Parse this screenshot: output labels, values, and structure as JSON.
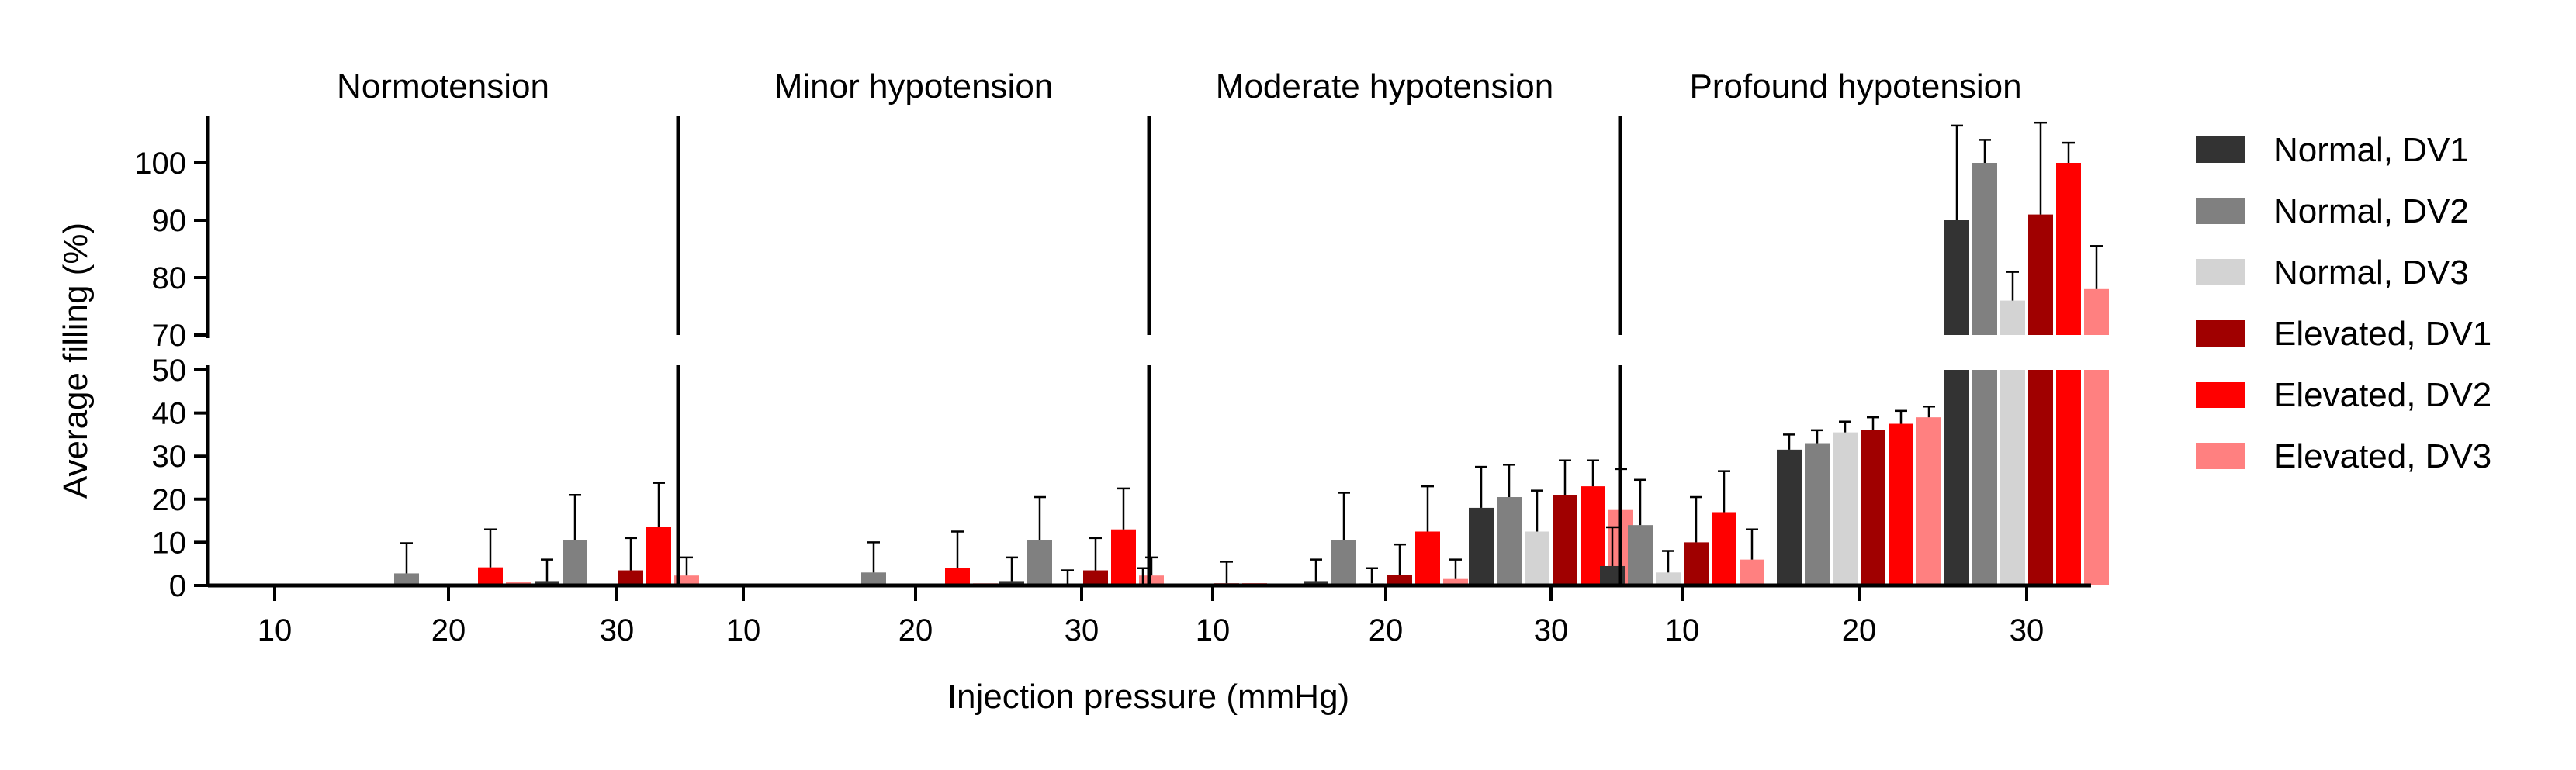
{
  "chart_data": {
    "type": "bar",
    "ylabel": "Average filling (%)",
    "xlabel": "Injection pressure (mmHg)",
    "y_axis_break": {
      "lower_range": [
        0,
        50
      ],
      "upper_range": [
        70,
        107
      ]
    },
    "lower_ticks": [
      0,
      10,
      20,
      30,
      40,
      50
    ],
    "upper_ticks": [
      70,
      80,
      90,
      100
    ],
    "categories": [
      "10",
      "20",
      "30"
    ],
    "panels": [
      {
        "title": "Normotension",
        "series": [
          {
            "name": "Normal, DV1",
            "values": [
              0,
              0,
              1
            ],
            "errors": [
              0,
              0,
              5
            ]
          },
          {
            "name": "Normal, DV2",
            "values": [
              0,
              2.8,
              10.5
            ],
            "errors": [
              0,
              7,
              10.5
            ]
          },
          {
            "name": "Normal, DV3",
            "values": [
              0,
              0,
              0
            ],
            "errors": [
              0,
              0,
              0
            ]
          },
          {
            "name": "Elevated, DV1",
            "values": [
              0,
              0,
              3.5
            ],
            "errors": [
              0,
              0,
              7.5
            ]
          },
          {
            "name": "Elevated, DV2",
            "values": [
              0,
              4.2,
              13.5
            ],
            "errors": [
              0,
              8.8,
              10.3
            ]
          },
          {
            "name": "Elevated, DV3",
            "values": [
              0,
              0.8,
              2.3
            ],
            "errors": [
              0,
              0,
              4.2
            ]
          }
        ]
      },
      {
        "title": "Minor hypotension",
        "series": [
          {
            "name": "Normal, DV1",
            "values": [
              0,
              0,
              1
            ],
            "errors": [
              0,
              0,
              5.5
            ]
          },
          {
            "name": "Normal, DV2",
            "values": [
              0,
              3,
              10.5
            ],
            "errors": [
              0,
              7,
              10
            ]
          },
          {
            "name": "Normal, DV3",
            "values": [
              0,
              0,
              0
            ],
            "errors": [
              0,
              0,
              3.5
            ]
          },
          {
            "name": "Elevated, DV1",
            "values": [
              0,
              0,
              3.5
            ],
            "errors": [
              0,
              0,
              7.5
            ]
          },
          {
            "name": "Elevated, DV2",
            "values": [
              0,
              4,
              13
            ],
            "errors": [
              0,
              8.5,
              9.5
            ]
          },
          {
            "name": "Elevated, DV3",
            "values": [
              0,
              0.5,
              2.3
            ],
            "errors": [
              0,
              0,
              4.2
            ]
          }
        ]
      },
      {
        "title": "Moderate hypotension",
        "series": [
          {
            "name": "Normal, DV1",
            "values": [
              0,
              1,
              18
            ],
            "errors": [
              4,
              5,
              9.5
            ]
          },
          {
            "name": "Normal, DV2",
            "values": [
              0,
              10.5,
              20.5
            ],
            "errors": [
              0,
              11,
              7.5
            ]
          },
          {
            "name": "Normal, DV3",
            "values": [
              0,
              0.5,
              12.5
            ],
            "errors": [
              0,
              3.5,
              9.5
            ]
          },
          {
            "name": "Elevated, DV1",
            "values": [
              0.5,
              2.5,
              21
            ],
            "errors": [
              5,
              7,
              8
            ]
          },
          {
            "name": "Elevated, DV2",
            "values": [
              0.5,
              12.5,
              23
            ],
            "errors": [
              0,
              10.5,
              6
            ]
          },
          {
            "name": "Elevated, DV3",
            "values": [
              0,
              1.5,
              17.5
            ],
            "errors": [
              0,
              4.5,
              9.5
            ]
          }
        ]
      },
      {
        "title": "Profound hypotension",
        "series": [
          {
            "name": "Normal, DV1",
            "values": [
              4.5,
              31.5,
              90
            ],
            "errors": [
              9,
              3.5,
              16.5
            ]
          },
          {
            "name": "Normal, DV2",
            "values": [
              14,
              33,
              100
            ],
            "errors": [
              10.5,
              3,
              4
            ]
          },
          {
            "name": "Normal, DV3",
            "values": [
              3,
              35.5,
              76
            ],
            "errors": [
              5,
              2.5,
              5
            ]
          },
          {
            "name": "Elevated, DV1",
            "values": [
              10,
              36,
              91
            ],
            "errors": [
              10.5,
              3,
              16
            ]
          },
          {
            "name": "Elevated, DV2",
            "values": [
              17,
              37.5,
              100
            ],
            "errors": [
              9.5,
              3,
              3.5
            ]
          },
          {
            "name": "Elevated, DV3",
            "values": [
              6,
              39,
              78
            ],
            "errors": [
              7,
              2.5,
              7.5
            ]
          }
        ]
      }
    ],
    "legend": [
      "Normal, DV1",
      "Normal, DV2",
      "Normal, DV3",
      "Elevated, DV1",
      "Elevated, DV2",
      "Elevated, DV3"
    ],
    "colors": {
      "Normal, DV1": "#333333",
      "Normal, DV2": "#808080",
      "Normal, DV3": "#d3d3d3",
      "Elevated, DV1": "#a00000",
      "Elevated, DV2": "#ff0000",
      "Elevated, DV3": "#ff8080"
    },
    "legend_position": "right",
    "grid": false
  }
}
